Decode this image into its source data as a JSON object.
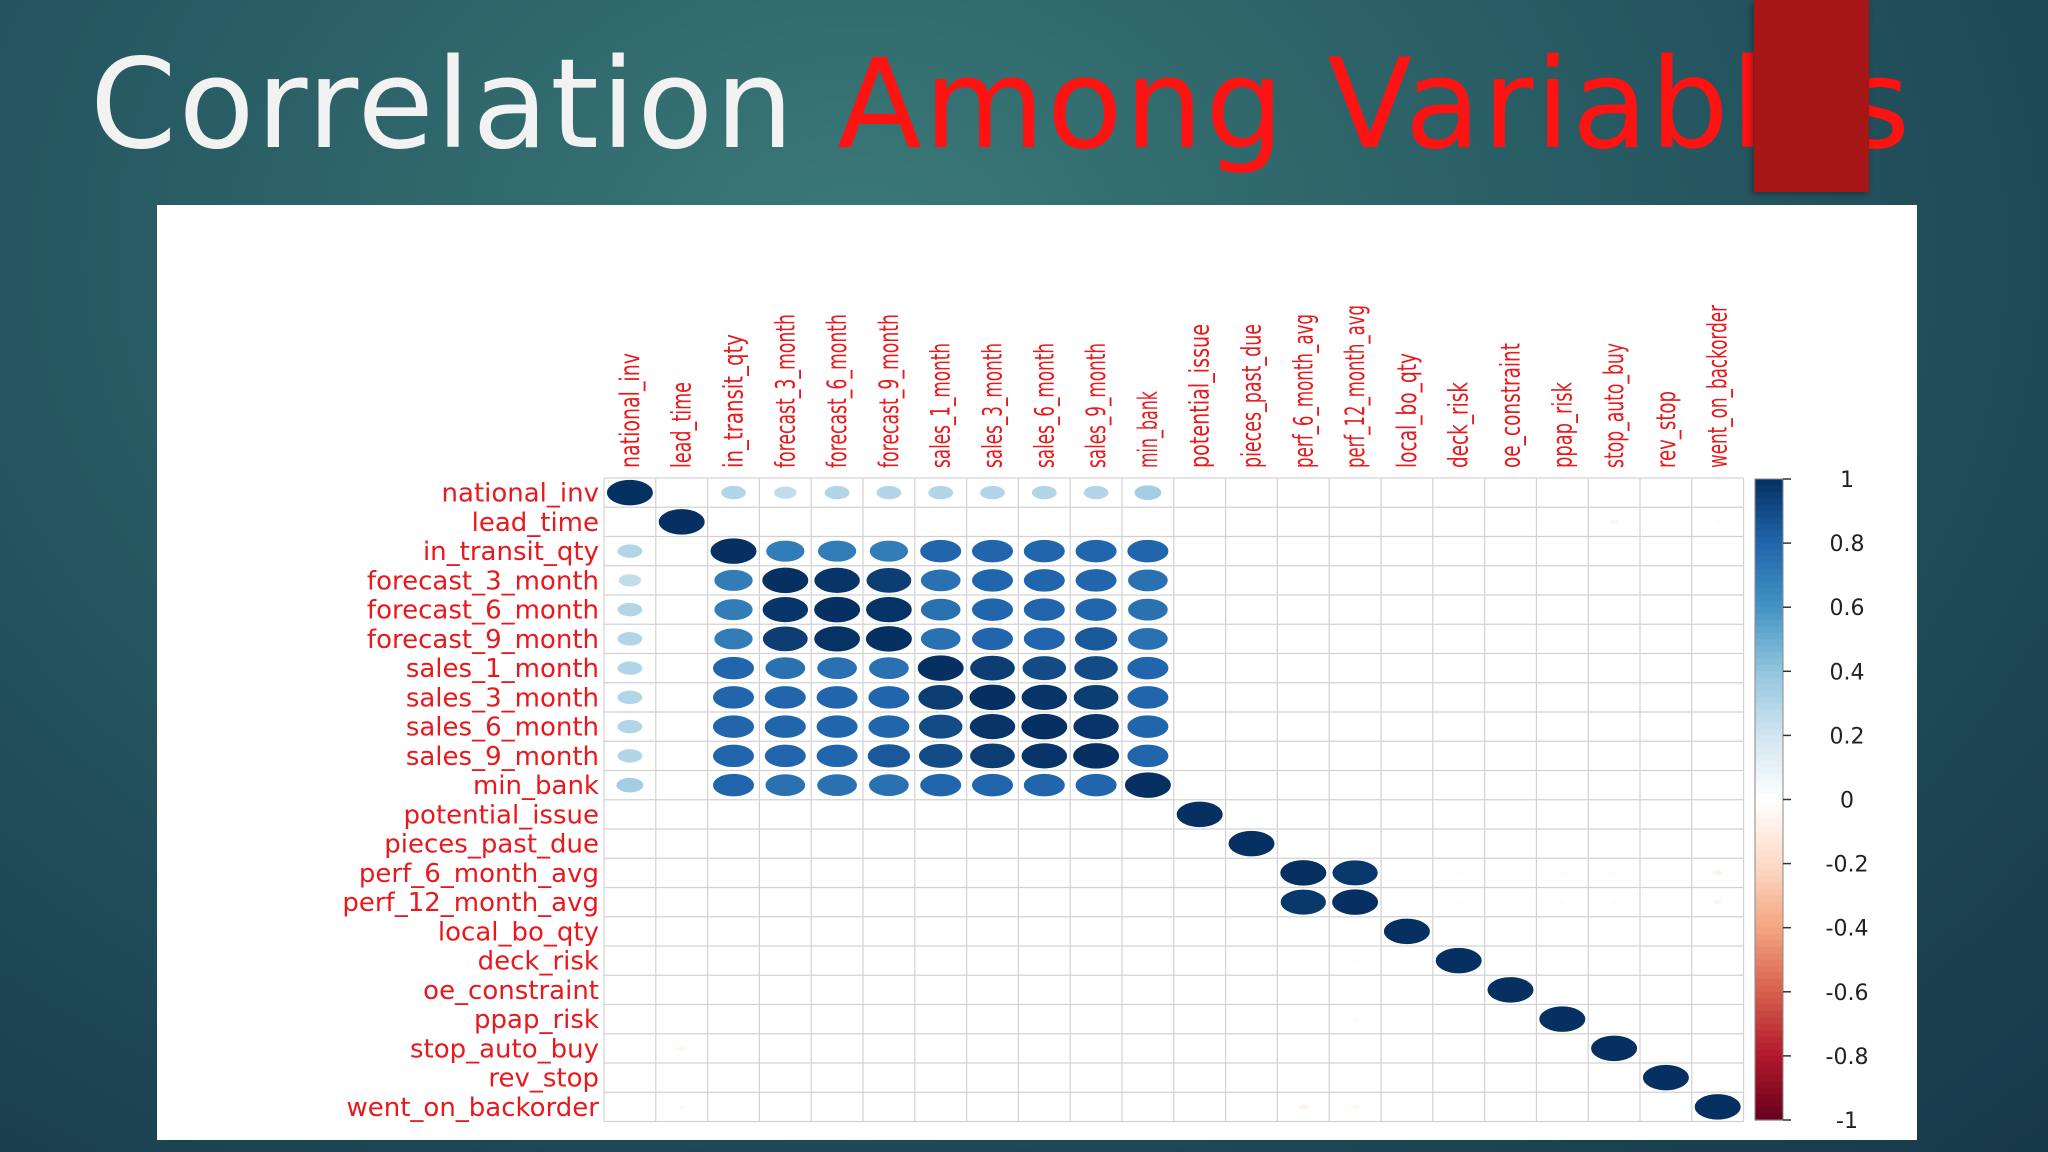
{
  "slide": {
    "title_part1": "Correlation ",
    "title_part2": "Among Variables",
    "accent_color": "#a61616",
    "title_highlight_color": "#ff1212"
  },
  "chart_data": {
    "type": "heatmap",
    "subtype": "correlogram-circle",
    "variables": [
      "national_inv",
      "lead_time",
      "in_transit_qty",
      "forecast_3_month",
      "forecast_6_month",
      "forecast_9_month",
      "sales_1_month",
      "sales_3_month",
      "sales_6_month",
      "sales_9_month",
      "min_bank",
      "potential_issue",
      "pieces_past_due",
      "perf_6_month_avg",
      "perf_12_month_avg",
      "local_bo_qty",
      "deck_risk",
      "oe_constraint",
      "ppap_risk",
      "stop_auto_buy",
      "rev_stop",
      "went_on_backorder"
    ],
    "matrix": [
      [
        1,
        0,
        0.3,
        0.25,
        0.3,
        0.3,
        0.3,
        0.3,
        0.3,
        0.3,
        0.35,
        0,
        0,
        0,
        0,
        0,
        0,
        0,
        0,
        0,
        0,
        0
      ],
      [
        0,
        1,
        0,
        0,
        0,
        0,
        0,
        0,
        0,
        0,
        0,
        0,
        0,
        0,
        0,
        0,
        0,
        0,
        0,
        -0.05,
        0,
        -0.03
      ],
      [
        0.3,
        0,
        1,
        0.7,
        0.7,
        0.7,
        0.8,
        0.8,
        0.8,
        0.8,
        0.8,
        0,
        0,
        0,
        0,
        0,
        0,
        0,
        0,
        0,
        0,
        0
      ],
      [
        0.25,
        0,
        0.7,
        1,
        0.98,
        0.95,
        0.75,
        0.8,
        0.8,
        0.8,
        0.75,
        0,
        0,
        0,
        0,
        0,
        0,
        0,
        0,
        0,
        0,
        0
      ],
      [
        0.3,
        0,
        0.7,
        0.98,
        1,
        0.99,
        0.75,
        0.8,
        0.8,
        0.8,
        0.75,
        0,
        0,
        0,
        0,
        0,
        0,
        0,
        0,
        0,
        0,
        0
      ],
      [
        0.3,
        0,
        0.7,
        0.95,
        0.99,
        1,
        0.75,
        0.8,
        0.8,
        0.85,
        0.75,
        0,
        0,
        0,
        0,
        0,
        0,
        0,
        0,
        0,
        0,
        0
      ],
      [
        0.3,
        0,
        0.8,
        0.75,
        0.75,
        0.75,
        1,
        0.95,
        0.9,
        0.9,
        0.8,
        0,
        0,
        0,
        0,
        0,
        0,
        0,
        0,
        0,
        0,
        0
      ],
      [
        0.3,
        0,
        0.8,
        0.8,
        0.8,
        0.8,
        0.95,
        1,
        0.98,
        0.95,
        0.8,
        0,
        0,
        0,
        0,
        0,
        0,
        0,
        0,
        0,
        0,
        0
      ],
      [
        0.3,
        0,
        0.8,
        0.8,
        0.8,
        0.8,
        0.9,
        0.98,
        1,
        0.98,
        0.8,
        0,
        0,
        0,
        0,
        0,
        0,
        0,
        0,
        0,
        0,
        0
      ],
      [
        0.3,
        0,
        0.8,
        0.8,
        0.8,
        0.85,
        0.9,
        0.95,
        0.98,
        1,
        0.8,
        0,
        0,
        0,
        0,
        0,
        0,
        0,
        0,
        0,
        0,
        0
      ],
      [
        0.35,
        0,
        0.8,
        0.75,
        0.75,
        0.75,
        0.8,
        0.8,
        0.8,
        0.8,
        1,
        0,
        0,
        0,
        0,
        0,
        0,
        0,
        0,
        0,
        0,
        0
      ],
      [
        0,
        0,
        0,
        0,
        0,
        0,
        0,
        0,
        0,
        0,
        0,
        1,
        0,
        0,
        0,
        0,
        0,
        0,
        0,
        0,
        0,
        0
      ],
      [
        0,
        0,
        0,
        0,
        0,
        0,
        0,
        0,
        0,
        0,
        0,
        0,
        1,
        0,
        0,
        0,
        0,
        0,
        0,
        0,
        0,
        0
      ],
      [
        0,
        0,
        0,
        0,
        0,
        0,
        0,
        0,
        0,
        0,
        0,
        0,
        0,
        1,
        0.97,
        0,
        -0.02,
        0,
        -0.02,
        -0.02,
        0,
        -0.06
      ],
      [
        0,
        0,
        0,
        0,
        0,
        0,
        0,
        0,
        0,
        0,
        0,
        0,
        0,
        0.97,
        1,
        0,
        -0.02,
        0,
        -0.02,
        -0.02,
        0,
        -0.05
      ],
      [
        0,
        0,
        0,
        0,
        0,
        0,
        0,
        0,
        0,
        0,
        0,
        0,
        0,
        0,
        0,
        1,
        0,
        0,
        0,
        0,
        0,
        0
      ],
      [
        0,
        0,
        0,
        0,
        0,
        0,
        0,
        0,
        0,
        0,
        0,
        0,
        0,
        -0.02,
        -0.02,
        0,
        1,
        0,
        0,
        0,
        0,
        0
      ],
      [
        0,
        0,
        0,
        0,
        0,
        0,
        0,
        0,
        0,
        0,
        0,
        0,
        0,
        0,
        0,
        0,
        0,
        1,
        0,
        0,
        0,
        0
      ],
      [
        0,
        0,
        0,
        0,
        0,
        0,
        0,
        0,
        0,
        0,
        0,
        0,
        0,
        -0.02,
        -0.02,
        0,
        0,
        0,
        1,
        0,
        0,
        0
      ],
      [
        0,
        -0.05,
        0,
        0,
        0,
        0,
        0,
        0,
        0,
        0,
        0,
        0,
        0,
        -0.02,
        -0.02,
        0,
        0,
        0,
        0,
        1,
        0,
        0
      ],
      [
        0,
        0,
        0,
        0,
        0,
        0,
        0,
        0,
        0,
        0,
        0,
        0,
        0,
        0,
        0,
        0,
        0,
        0,
        0,
        0,
        1,
        0
      ],
      [
        0,
        -0.03,
        0,
        0,
        0,
        0,
        0,
        0,
        0,
        0,
        0,
        0,
        0,
        -0.06,
        -0.05,
        0,
        0,
        0,
        0,
        0,
        0,
        1
      ]
    ],
    "colorbar": {
      "range": [
        -1,
        1
      ],
      "ticks": [
        "1",
        "0.8",
        "0.6",
        "0.4",
        "0.2",
        "0",
        "-0.2",
        "-0.4",
        "-0.6",
        "-0.8",
        "-1"
      ],
      "low_color": "#67001f",
      "high_color": "#053061"
    },
    "label_color": "#e8191c",
    "grid": true
  }
}
